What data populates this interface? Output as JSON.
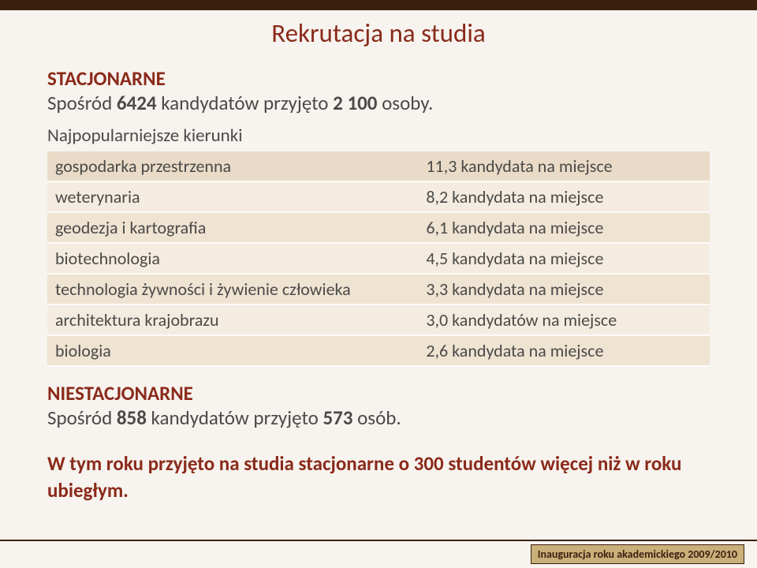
{
  "colors": {
    "background": "#f7f3ee",
    "top_band": "#3b1f0f",
    "accent_text": "#8a2a1a",
    "body_text": "#4a4a48",
    "table_head_bg": "#e9dbc7",
    "table_row_a": "#f4ece0",
    "table_row_b": "#efe3d2",
    "footer_badge_bg": "#c9b07a"
  },
  "title": "Rekrutacja na studia",
  "stationary": {
    "heading": "STACJONARNE",
    "line_prefix": "Spośród ",
    "count_applicants": "6424",
    "line_mid": " kandydatów przyjęto ",
    "count_admitted": "2 100",
    "line_suffix": " osoby."
  },
  "table": {
    "caption": "Najpopularniejsze kierunki",
    "head": {
      "c1": "gospodarka przestrzenna",
      "c2": "11,3 kandydata na miejsce"
    },
    "rows": [
      {
        "c1": "weterynaria",
        "c2": "8,2 kandydata na miejsce"
      },
      {
        "c1": "geodezja i kartografia",
        "c2": "6,1 kandydata na miejsce"
      },
      {
        "c1": "biotechnologia",
        "c2": "4,5 kandydata na miejsce"
      },
      {
        "c1": "technologia żywności i żywienie człowieka",
        "c2": "3,3 kandydata na miejsce"
      },
      {
        "c1": "architektura krajobrazu",
        "c2": "3,0 kandydatów na miejsce"
      },
      {
        "c1": "biologia",
        "c2": "2,6 kandydata na miejsce"
      }
    ]
  },
  "nonstationary": {
    "heading": "NIESTACJONARNE",
    "line_prefix": "Spośród ",
    "count_applicants": "858",
    "line_mid": " kandydatów przyjęto ",
    "count_admitted": "573",
    "line_suffix": " osób."
  },
  "summary": "W tym roku przyjęto na studia stacjonarne o 300 studentów więcej niż w roku ubiegłym.",
  "footer": "Inauguracja roku akademickiego 2009/2010"
}
